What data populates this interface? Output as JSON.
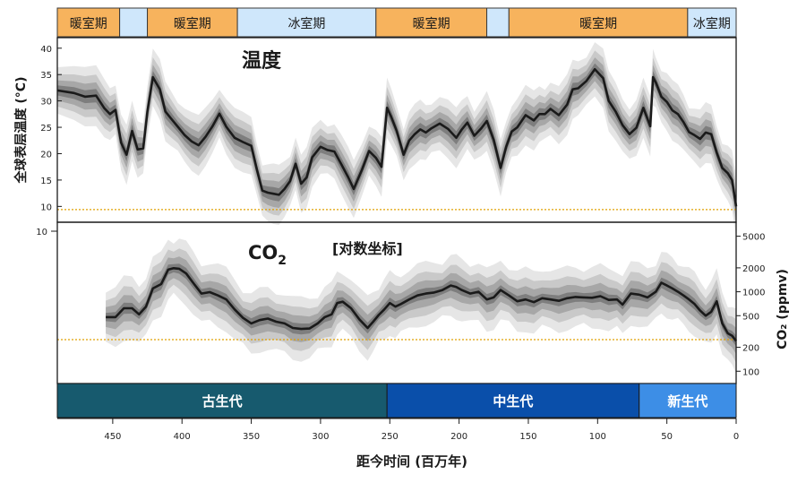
{
  "chart_data": [
    {
      "type": "line",
      "title": "温度",
      "ylabel": "全球表层温度 (°C)",
      "xlabel": "距今时间 (百万年)",
      "xlim": [
        490,
        0
      ],
      "ylim": [
        7,
        42
      ],
      "yticks": [
        10,
        15,
        20,
        25,
        30,
        35,
        40
      ],
      "xticks": [
        450,
        400,
        350,
        300,
        250,
        200,
        150,
        100,
        50,
        0
      ],
      "reference_value": 9.4,
      "grid": false,
      "series": [
        {
          "x": [
            490,
            478,
            470,
            462,
            456,
            452,
            448,
            444,
            440,
            436,
            432,
            428,
            425,
            421,
            416,
            412,
            408,
            403,
            398,
            393,
            388,
            383,
            378,
            373,
            368,
            362,
            356,
            350,
            346,
            342,
            338,
            334,
            330,
            326,
            322,
            318,
            314,
            310,
            306,
            300,
            295,
            290,
            285,
            280,
            276,
            270,
            265,
            260,
            256,
            252,
            249,
            245,
            240,
            236,
            232,
            228,
            224,
            220,
            214,
            208,
            202,
            198,
            194,
            189,
            184,
            180,
            175,
            170,
            166,
            162,
            158,
            152,
            146,
            142,
            138,
            134,
            128,
            122,
            118,
            114,
            108,
            102,
            96,
            92,
            87,
            82,
            77,
            72,
            67,
            62,
            60,
            58,
            54,
            50,
            46,
            42,
            38,
            34,
            30,
            26,
            22,
            18,
            14,
            10,
            6,
            3,
            0
          ],
          "y": [
            32.0,
            31.5,
            30.8,
            31.0,
            28.6,
            27.5,
            28.3,
            22.1,
            19.8,
            24.3,
            20.8,
            21.0,
            28.0,
            34.5,
            32.2,
            28.0,
            26.7,
            25.1,
            23.5,
            22.3,
            21.6,
            23.2,
            25.2,
            27.6,
            25.1,
            23.0,
            22.2,
            21.5,
            17.0,
            13.0,
            12.6,
            12.4,
            12.2,
            13.3,
            14.8,
            18.1,
            14.3,
            15.5,
            19.3,
            21.3,
            20.7,
            20.4,
            18.0,
            15.5,
            13.3,
            17.0,
            20.5,
            19.2,
            17.5,
            28.7,
            27.0,
            24.3,
            19.8,
            22.5,
            23.7,
            24.6,
            24.0,
            24.8,
            25.7,
            24.7,
            23.0,
            24.6,
            25.9,
            23.4,
            24.8,
            26.2,
            22.6,
            17.3,
            21.3,
            24.2,
            25.0,
            27.3,
            26.3,
            27.5,
            27.5,
            28.5,
            27.3,
            29.3,
            32.2,
            32.4,
            33.8,
            36.0,
            34.3,
            30.0,
            28.0,
            25.4,
            23.7,
            24.9,
            28.7,
            25.2,
            34.5,
            33.5,
            30.8,
            29.8,
            28.2,
            27.5,
            26.0,
            24.1,
            23.5,
            22.8,
            24.0,
            23.7,
            20.2,
            17.3,
            16.3,
            15.0,
            10.0
          ]
        }
      ]
    },
    {
      "type": "line",
      "title": "CO2",
      "title_main": "CO",
      "title_sub": "2",
      "subtitle": "[对数坐标]",
      "ylabel": "CO₂ (ppmv)",
      "xlim": [
        490,
        0
      ],
      "scale": "log",
      "ylim": [
        70,
        7500
      ],
      "yticks": [
        100,
        200,
        500,
        1000,
        2000,
        5000
      ],
      "left_tick": "10",
      "reference_value": 250,
      "grid": false,
      "series": [
        {
          "x": [
            455,
            448,
            442,
            436,
            431,
            426,
            421,
            415,
            410,
            406,
            402,
            397,
            392,
            386,
            380,
            374,
            368,
            362,
            356,
            350,
            344,
            338,
            332,
            326,
            320,
            314,
            308,
            302,
            297,
            292,
            288,
            284,
            278,
            272,
            266,
            262,
            258,
            254,
            250,
            246,
            242,
            236,
            230,
            224,
            218,
            212,
            206,
            202,
            198,
            192,
            186,
            180,
            175,
            170,
            164,
            158,
            152,
            146,
            140,
            134,
            128,
            122,
            116,
            110,
            104,
            98,
            92,
            86,
            82,
            76,
            70,
            64,
            58,
            54,
            50,
            46,
            42,
            38,
            34,
            30,
            26,
            22,
            18,
            14,
            10,
            6,
            3,
            0
          ],
          "y": [
            480,
            480,
            620,
            620,
            520,
            650,
            1100,
            1250,
            1900,
            1980,
            1950,
            1700,
            1300,
            950,
            990,
            900,
            800,
            600,
            470,
            400,
            440,
            460,
            420,
            400,
            350,
            340,
            345,
            400,
            480,
            520,
            720,
            750,
            620,
            450,
            350,
            420,
            510,
            600,
            720,
            650,
            700,
            800,
            900,
            950,
            980,
            1050,
            1200,
            1150,
            1050,
            950,
            1000,
            800,
            850,
            1050,
            900,
            760,
            800,
            740,
            830,
            800,
            770,
            830,
            860,
            850,
            840,
            880,
            790,
            800,
            690,
            950,
            920,
            850,
            1000,
            1300,
            1200,
            1100,
            1000,
            900,
            800,
            700,
            580,
            500,
            560,
            760,
            400,
            300,
            280,
            240
          ]
        }
      ]
    }
  ],
  "climate_bands": [
    {
      "label": "暖室期",
      "from": 490,
      "to": 445,
      "kind": "warm"
    },
    {
      "label": "",
      "from": 445,
      "to": 425,
      "kind": "cold"
    },
    {
      "label": "暖室期",
      "from": 425,
      "to": 360,
      "kind": "warm"
    },
    {
      "label": "冰室期",
      "from": 360,
      "to": 260,
      "kind": "cold"
    },
    {
      "label": "暖室期",
      "from": 260,
      "to": 180,
      "kind": "warm"
    },
    {
      "label": "",
      "from": 180,
      "to": 164,
      "kind": "cold"
    },
    {
      "label": "暖室期",
      "from": 164,
      "to": 35,
      "kind": "warm"
    },
    {
      "label": "冰室期",
      "from": 35,
      "to": 0,
      "kind": "cold"
    }
  ],
  "eras": [
    {
      "label": "古生代",
      "from": 490,
      "to": 252,
      "color": "#175a6e"
    },
    {
      "label": "中生代",
      "from": 252,
      "to": 70,
      "color": "#0a4faa"
    },
    {
      "label": "新生代",
      "from": 70,
      "to": 0,
      "color": "#3d8ee6"
    }
  ],
  "colors": {
    "warm": "#f7b35d",
    "cold": "#cfe7fb",
    "line": "#1a1a1a",
    "reference": "#e0a000",
    "uncertainty": [
      "#e6e6e6",
      "#c9c9c9",
      "#a7a7a7",
      "#7e7e7e"
    ]
  }
}
